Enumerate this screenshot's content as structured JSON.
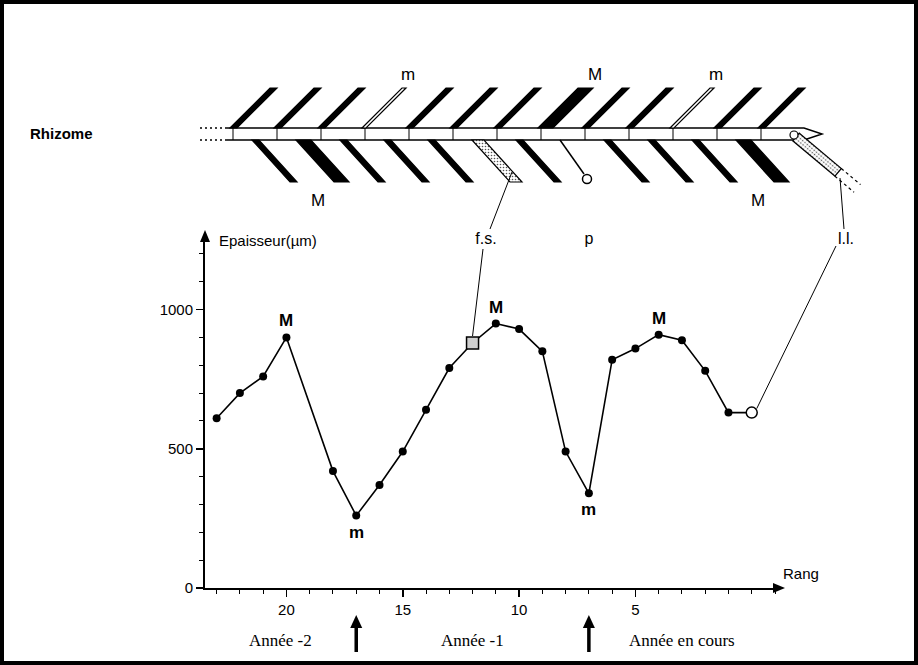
{
  "chart_data": {
    "type": "line",
    "color": "#000000",
    "xlabel": "Rang",
    "ylabel": "Epaisseur(µm)",
    "series": [
      {
        "x": [
          23,
          22,
          21,
          20,
          18,
          17,
          16,
          15,
          14,
          13,
          12,
          11,
          10,
          9,
          8,
          7,
          6,
          5,
          4,
          3,
          2,
          1,
          0
        ],
        "values": [
          610,
          700,
          760,
          900,
          420,
          260,
          370,
          490,
          640,
          790,
          880,
          950,
          930,
          850,
          490,
          340,
          820,
          860,
          910,
          890,
          780,
          630,
          630
        ],
        "marker": "circle",
        "line_style": "solid"
      },
      {
        "x": [
          12
        ],
        "values": [
          880
        ],
        "marker": "square",
        "line_style": "none"
      },
      {
        "x": [
          0
        ],
        "values": [
          630
        ],
        "marker": "circle-open",
        "line_style": "none"
      }
    ],
    "xlim": [
      23.5,
      -1
    ],
    "xticks": [
      20,
      15,
      10,
      5
    ],
    "ylim": [
      0,
      1250
    ],
    "yticks": [
      0,
      500,
      1000
    ],
    "grid": false,
    "annotations": [
      {
        "text": "M",
        "x": 20,
        "y": 900,
        "position": "above"
      },
      {
        "text": "m",
        "x": 17,
        "y": 260,
        "position": "below"
      },
      {
        "text": "M",
        "x": 11,
        "y": 950,
        "position": "above"
      },
      {
        "text": "m",
        "x": 7,
        "y": 340,
        "position": "below"
      },
      {
        "text": "M",
        "x": 4,
        "y": 910,
        "position": "above"
      }
    ],
    "periods": [
      "Année -2",
      "Année -1",
      "Année en cours"
    ],
    "period_bounds": [
      17,
      7
    ]
  },
  "diagram": {
    "rhizome": "Rhizome",
    "top_leaf_labels": [
      "m",
      "M",
      "m"
    ],
    "bottom_leaf_labels": [
      "M",
      "M"
    ],
    "fs_label": "f.s.",
    "p_label": "p",
    "ll_label": "l.l."
  }
}
